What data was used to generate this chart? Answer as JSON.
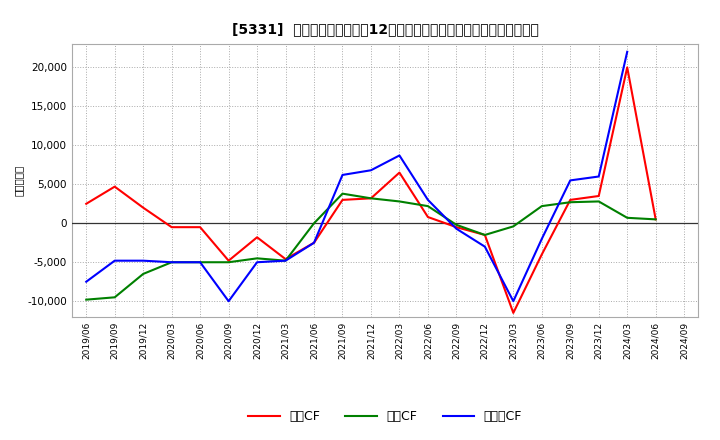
{
  "title": "[5331]  キャッシュフローの12か月移動合計の対前年同期増減額の推移",
  "ylabel": "（百万円）",
  "background_color": "#ffffff",
  "plot_bg_color": "#ffffff",
  "grid_color": "#aaaaaa",
  "x_labels": [
    "2019/06",
    "2019/09",
    "2019/12",
    "2020/03",
    "2020/06",
    "2020/09",
    "2020/12",
    "2021/03",
    "2021/06",
    "2021/09",
    "2021/12",
    "2022/03",
    "2022/06",
    "2022/09",
    "2022/12",
    "2023/03",
    "2023/06",
    "2023/09",
    "2023/12",
    "2024/03",
    "2024/06",
    "2024/09"
  ],
  "eigyo_cf": [
    2500,
    4700,
    2000,
    -500,
    -500,
    -4800,
    -1800,
    -4600,
    -2500,
    3000,
    3200,
    6500,
    800,
    -500,
    -1500,
    -11500,
    -4000,
    3000,
    3500,
    20000,
    500,
    null
  ],
  "toshi_cf": [
    -9800,
    -9500,
    -6500,
    -5000,
    -5000,
    -5000,
    -4500,
    -4800,
    0,
    3800,
    3200,
    2800,
    2200,
    -200,
    -1500,
    -400,
    2200,
    2700,
    2800,
    700,
    500,
    null
  ],
  "free_cf": [
    -7500,
    -4800,
    -4800,
    -5000,
    -5000,
    -10000,
    -5000,
    -4800,
    -2500,
    6200,
    6800,
    8700,
    3000,
    -700,
    -3000,
    -10000,
    -2000,
    5500,
    6000,
    22000,
    null,
    null
  ],
  "legend_eigyo": "営業CF",
  "legend_toshi": "投資CF",
  "legend_free": "フリーCF",
  "ylim": [
    -12000,
    23000
  ],
  "yticks": [
    -10000,
    -5000,
    0,
    5000,
    10000,
    15000,
    20000
  ],
  "line_colors": {
    "eigyo": "#ff0000",
    "toshi": "#008000",
    "free": "#0000ff"
  }
}
